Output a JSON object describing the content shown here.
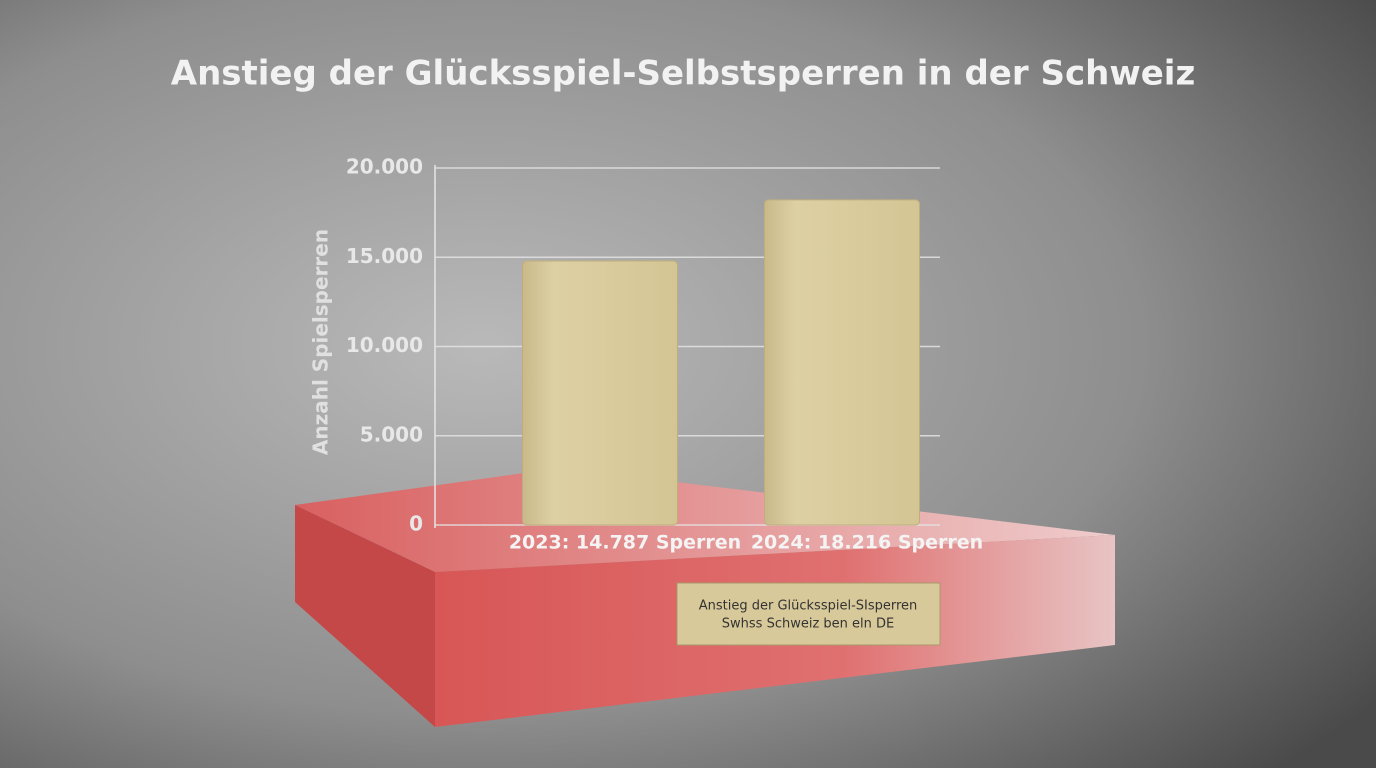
{
  "chart_data": {
    "type": "bar",
    "title": "Anstieg der Glücksspiel-Selbstsperren in der Schweiz",
    "ylabel": "Anzahl Spielsperren",
    "categories": [
      "2023: 14.787 Sperren",
      "2024: 18.216 Sperren"
    ],
    "values": [
      14787,
      18216
    ],
    "color": "#d8cb9a",
    "ylim": [
      0,
      20000
    ],
    "yticks": [
      0,
      {
        "value": 5000,
        "label": "5.000"
      },
      {
        "value": 10000,
        "label": "10.000"
      },
      {
        "value": 15000,
        "label": "15.000"
      },
      {
        "value": 20000,
        "label": "20.000"
      }
    ],
    "grid": true,
    "annotations": [
      "Anstieg der Glücksspiel-SIsperren",
      "Swhss Schweiz ben eln DE"
    ]
  }
}
